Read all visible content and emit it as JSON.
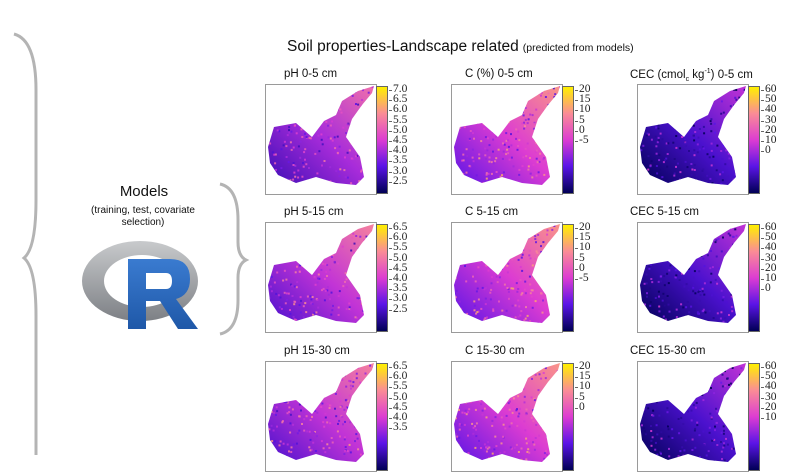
{
  "header": {
    "title": "Soil properties-Landscape related",
    "subtitle": "(predicted from models)"
  },
  "models": {
    "title": "Models",
    "subtitle": "(training, test, covariate selection)",
    "logo_letter": "R"
  },
  "colors": {
    "brace": "#b4b4b4",
    "r_ring": "#8c8f93",
    "r_letter": "#2b67b8",
    "scale_low": "#000055",
    "scale_mid": "#e040c8",
    "scale_high": "#fff000"
  },
  "panels": [
    {
      "label": "pH 0-5 cm",
      "ticks": [
        "7.0",
        "6.5",
        "6.0",
        "5.5",
        "5.0",
        "4.5",
        "4.0",
        "3.5",
        "3.0",
        "2.5"
      ],
      "level": 0.45
    },
    {
      "label": "C (%) 0-5 cm",
      "ticks": [
        "20",
        "15",
        "10",
        "5",
        "0",
        "-5"
      ],
      "level": 0.55
    },
    {
      "label_main": "CEC (cmol",
      "label_sub": "c",
      "label_mid": " kg",
      "label_sup": "-1",
      "label_end": ") 0-5 cm",
      "ticks": [
        "60",
        "50",
        "40",
        "30",
        "20",
        "10",
        "0"
      ],
      "level": 0.25
    },
    {
      "label": "pH 5-15 cm",
      "ticks": [
        "6.5",
        "6.0",
        "5.5",
        "5.0",
        "4.5",
        "4.0",
        "3.5",
        "3.0",
        "2.5"
      ],
      "level": 0.5
    },
    {
      "label": "C 5-15 cm",
      "ticks": [
        "20",
        "15",
        "10",
        "5",
        "0",
        "-5"
      ],
      "level": 0.55
    },
    {
      "label": "CEC 5-15 cm",
      "ticks": [
        "60",
        "50",
        "40",
        "30",
        "20",
        "10",
        "0"
      ],
      "level": 0.25
    },
    {
      "label": "pH 15-30 cm",
      "ticks": [
        "6.5",
        "6.0",
        "5.5",
        "5.0",
        "4.5",
        "4.0",
        "3.5"
      ],
      "level": 0.5
    },
    {
      "label": "C 15-30 cm",
      "ticks": [
        "20",
        "15",
        "10",
        "5",
        "0"
      ],
      "level": 0.55
    },
    {
      "label": "CEC 15-30 cm",
      "ticks": [
        "60",
        "50",
        "40",
        "30",
        "20",
        "10"
      ],
      "level": 0.25
    }
  ]
}
